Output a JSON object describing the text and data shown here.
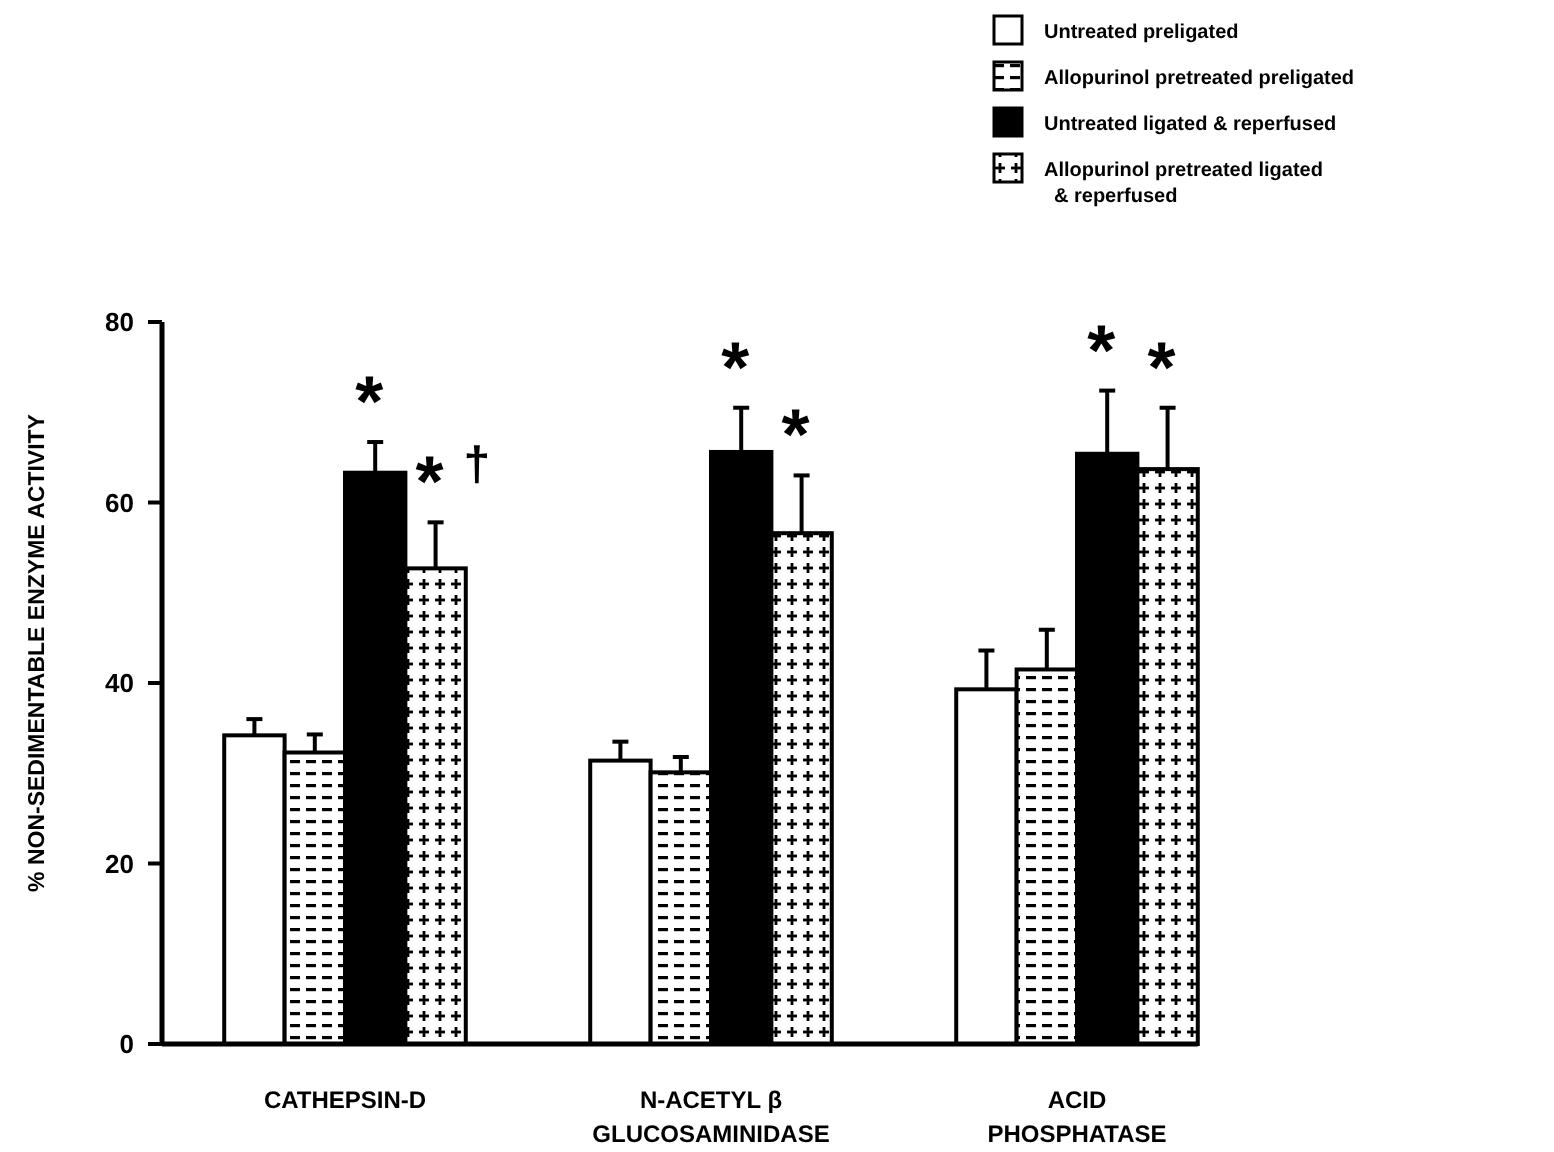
{
  "chart_data": {
    "type": "bar",
    "ylabel": "% NON-SEDIMENTABLE ENZYME ACTIVITY",
    "categories": [
      "CATHEPSIN-D",
      "N-ACETYL β\nGLUCOSAMINIDASE",
      "ACID\nPHOSPHATASE"
    ],
    "series": [
      {
        "name": "Untreated preligated",
        "color": "#ffffff",
        "values": [
          34.2,
          31.4,
          39.3
        ],
        "errors": [
          1.8,
          2.1,
          4.3
        ]
      },
      {
        "name": "Allopurinol pretreated preligated",
        "color": "#000000",
        "values": [
          32.3,
          30.1,
          41.5
        ],
        "errors": [
          2.0,
          1.7,
          4.4
        ]
      },
      {
        "name": "Untreated ligated & reperfused",
        "color": "#000000",
        "values": [
          63.3,
          65.6,
          65.4
        ],
        "errors": [
          3.4,
          4.9,
          7.0
        ]
      },
      {
        "name": "Allopurinol pretreated ligated\n& reperfused",
        "color": "#000000",
        "values": [
          52.7,
          56.6,
          63.7
        ],
        "errors": [
          5.1,
          6.4,
          6.8
        ]
      }
    ],
    "ylim": [
      0,
      80
    ],
    "yticks": [
      0,
      20,
      40,
      60,
      80
    ],
    "grid": false,
    "legend": "top right",
    "annotations": [
      {
        "text": "*",
        "x": "CATHEPSIN-D",
        "y": 63.3
      },
      {
        "text": "* $^{†}$",
        "x": "CATHEPSIN-D",
        "y": 52.7
      },
      {
        "text": "*",
        "x": "N-ACETYL β\nGLUCOSAMINIDASE",
        "y": 65.6
      },
      {
        "text": "*",
        "x": "N-ACETYL β\nGLUCOSAMINIDASE",
        "y": 56.6
      },
      {
        "text": "*",
        "x": "ACID\nPHOSPHATASE",
        "y": 65.4
      },
      {
        "text": "*",
        "x": "ACID\nPHOSPHATASE",
        "y": 63.7
      }
    ]
  }
}
